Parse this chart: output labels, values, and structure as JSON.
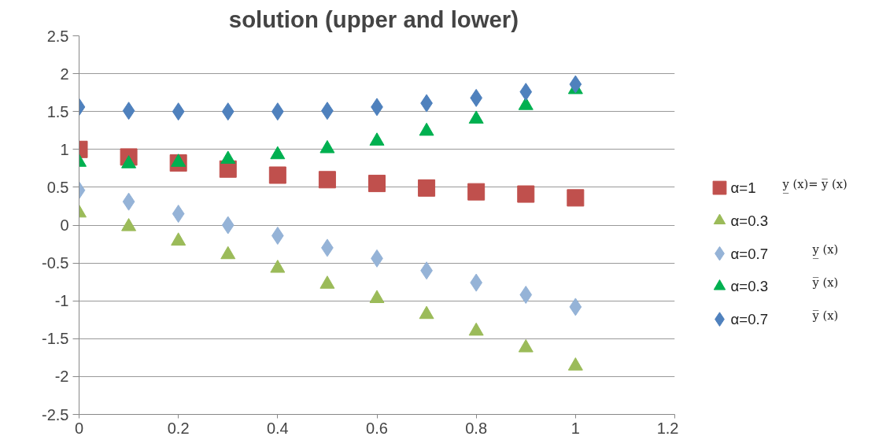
{
  "chart_data": {
    "type": "scatter",
    "title": "solution  (upper and lower)",
    "x": [
      0,
      0.1,
      0.2,
      0.3,
      0.4,
      0.5,
      0.6,
      0.7,
      0.8,
      0.9,
      1.0
    ],
    "series": [
      {
        "name": "α=1",
        "color": "#c0504d",
        "marker": "square",
        "values": [
          1.0,
          0.9,
          0.82,
          0.74,
          0.66,
          0.6,
          0.55,
          0.49,
          0.44,
          0.41,
          0.36
        ]
      },
      {
        "name": "α=0.3",
        "color": "#9bbb59",
        "marker": "triangle",
        "values": [
          0.16,
          -0.02,
          -0.21,
          -0.39,
          -0.57,
          -0.78,
          -0.97,
          -1.18,
          -1.4,
          -1.62,
          -1.86
        ]
      },
      {
        "name": "α=0.7",
        "color": "#95b3d7",
        "marker": "diamond",
        "values": [
          0.46,
          0.31,
          0.15,
          0.0,
          -0.14,
          -0.3,
          -0.44,
          -0.6,
          -0.76,
          -0.92,
          -1.08
        ]
      },
      {
        "name": "α=0.3",
        "color": "#00b050",
        "marker": "triangle",
        "values": [
          0.83,
          0.81,
          0.83,
          0.87,
          0.93,
          1.01,
          1.11,
          1.24,
          1.4,
          1.58,
          1.79
        ]
      },
      {
        "name": "α=0.7",
        "color": "#4f81bd",
        "marker": "diamond",
        "values": [
          1.56,
          1.51,
          1.5,
          1.5,
          1.5,
          1.51,
          1.56,
          1.61,
          1.68,
          1.76,
          1.86
        ]
      }
    ],
    "annotations": [
      "y̲ (x)= y̅ (x)",
      "y̲ (x)",
      "y̅ (x)",
      "y̅ (x)"
    ],
    "xlim": [
      0,
      1.2
    ],
    "xticks": [
      0,
      0.2,
      0.4,
      0.6,
      0.8,
      1,
      1.2
    ],
    "ylim": [
      -2.5,
      2.5
    ],
    "yticks": [
      -2.5,
      -2,
      -1.5,
      -1,
      -0.5,
      0,
      0.5,
      1,
      1.5,
      2,
      2.5
    ],
    "grid": "y",
    "legend": "right"
  }
}
